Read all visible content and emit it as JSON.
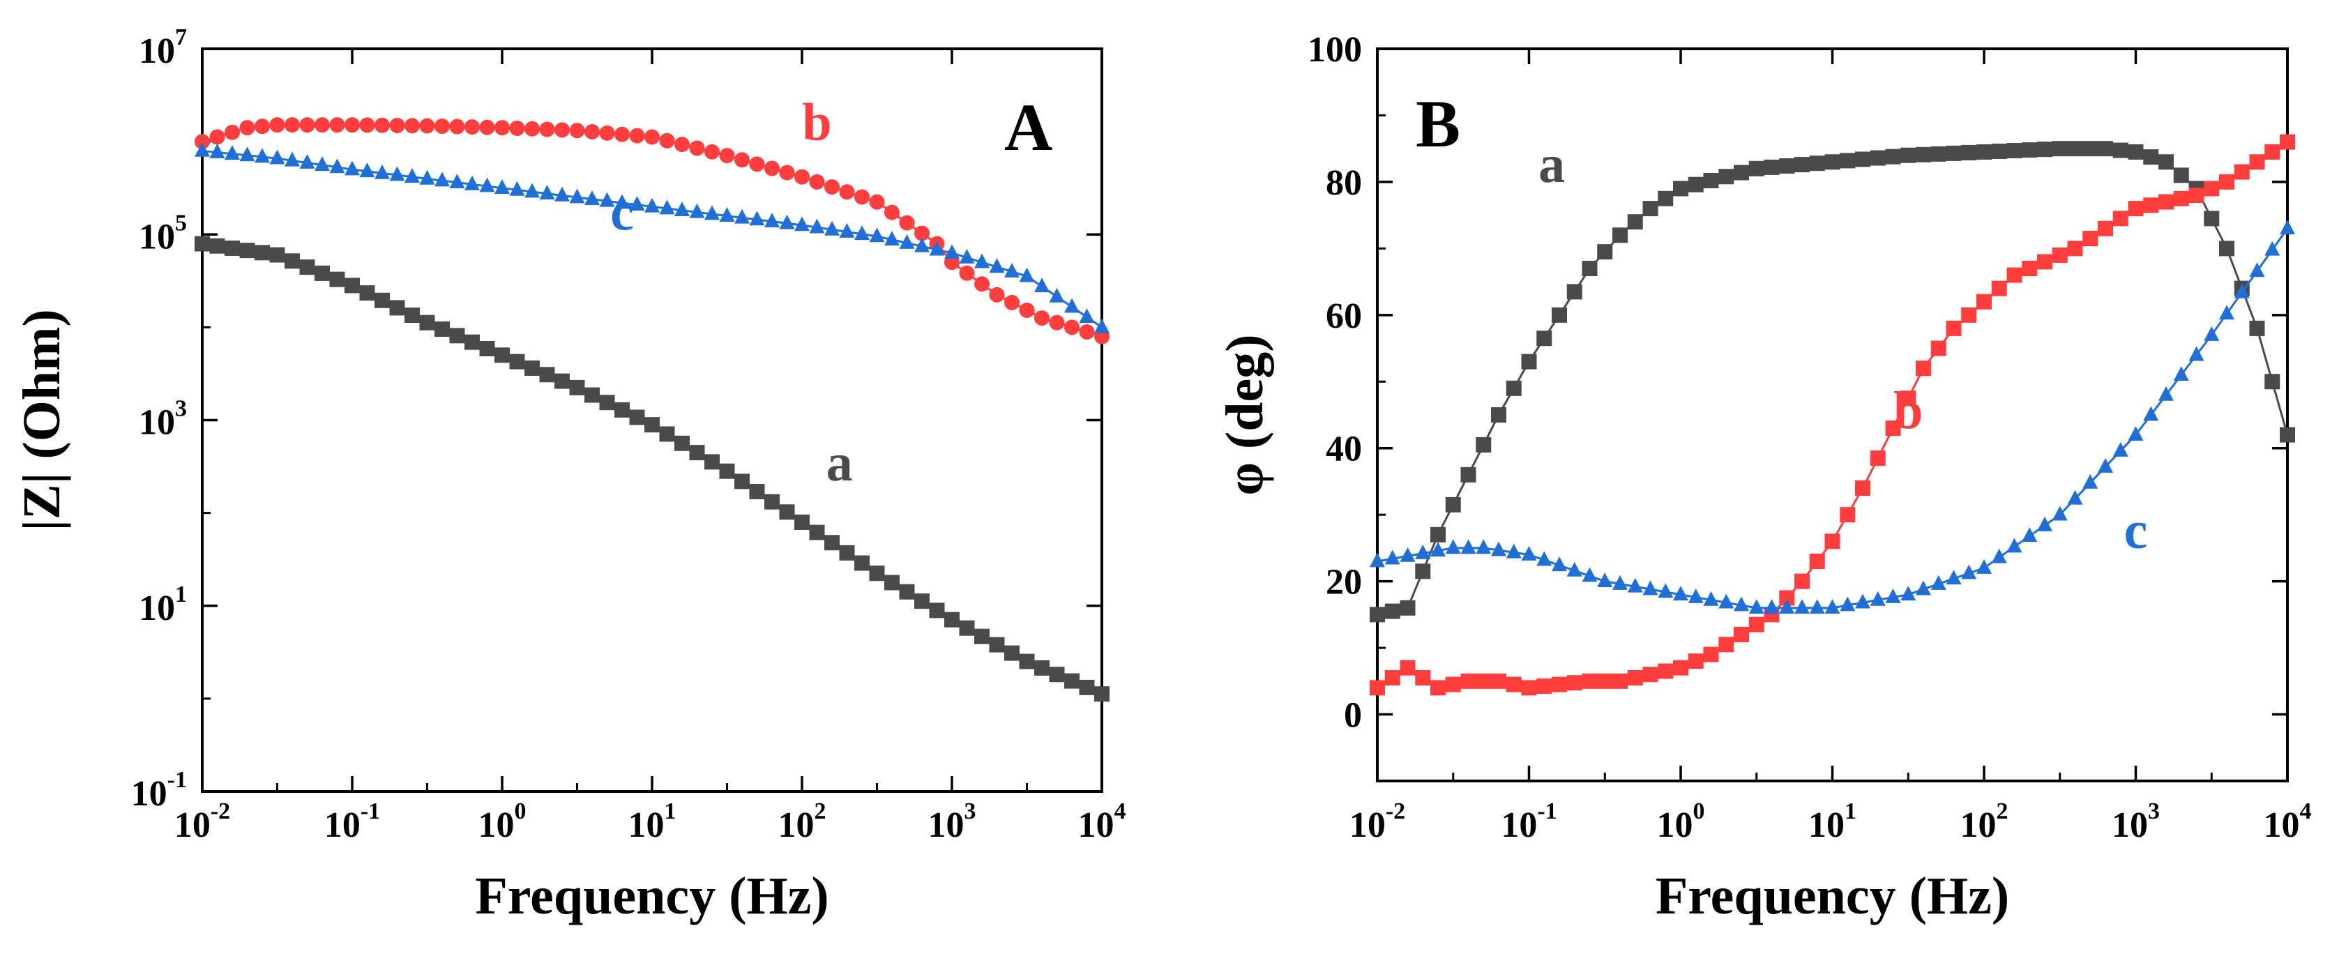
{
  "colors": {
    "a": "#4a4a4a",
    "b": "#ff3d3d",
    "c": "#1f6fd6"
  },
  "chart_data": [
    {
      "id": "A",
      "type": "line",
      "panel_label": "A",
      "xlabel": "Frequency (Hz)",
      "ylabel": "|Z| (Ohm)",
      "xscale": "log",
      "yscale": "log",
      "xlim": [
        0.01,
        10000
      ],
      "ylim": [
        0.1,
        10000000
      ],
      "x_ticks": [
        {
          "base": "10",
          "exp": "-2"
        },
        {
          "base": "10",
          "exp": "-1"
        },
        {
          "base": "10",
          "exp": "0"
        },
        {
          "base": "10",
          "exp": "1"
        },
        {
          "base": "10",
          "exp": "2"
        },
        {
          "base": "10",
          "exp": "3"
        },
        {
          "base": "10",
          "exp": "4"
        }
      ],
      "y_ticks": [
        {
          "base": "10",
          "exp": "-1"
        },
        {
          "base": "10",
          "exp": "1"
        },
        {
          "base": "10",
          "exp": "3"
        },
        {
          "base": "10",
          "exp": "5"
        },
        {
          "base": "10",
          "exp": "7"
        }
      ],
      "series": [
        {
          "name": "a",
          "label": "a",
          "marker": "square",
          "color_key": "a",
          "log10_x": [
            -2,
            -1.5,
            -1,
            -0.5,
            0,
            0.5,
            1,
            1.5,
            2,
            2.5,
            3,
            3.5,
            4
          ],
          "log10_y": [
            4.9,
            4.78,
            4.45,
            4.05,
            3.7,
            3.35,
            2.95,
            2.45,
            1.9,
            1.35,
            0.85,
            0.4,
            0.05
          ]
        },
        {
          "name": "b",
          "label": "b",
          "marker": "circle",
          "color_key": "b",
          "log10_x": [
            -2,
            -1.7,
            -1.5,
            -1,
            -0.5,
            0,
            0.5,
            1,
            1.5,
            2,
            2.5,
            2.9,
            3,
            3.3,
            3.6,
            4
          ],
          "log10_y": [
            6.0,
            6.15,
            6.18,
            6.18,
            6.17,
            6.15,
            6.12,
            6.05,
            5.85,
            5.62,
            5.35,
            4.9,
            4.7,
            4.35,
            4.1,
            3.9
          ]
        },
        {
          "name": "c",
          "label": "c",
          "marker": "triangle",
          "color_key": "c",
          "log10_x": [
            -2,
            -1.5,
            -1,
            -0.5,
            0,
            0.5,
            1,
            1.5,
            2,
            2.5,
            3,
            3.5,
            4
          ],
          "log10_y": [
            5.9,
            5.82,
            5.7,
            5.6,
            5.5,
            5.4,
            5.3,
            5.2,
            5.1,
            4.98,
            4.8,
            4.55,
            4.0
          ]
        }
      ],
      "curve_labels": [
        {
          "series": "b",
          "text": "b",
          "log10_x": 2.1,
          "log10_y": 6.02
        },
        {
          "series": "c",
          "text": "c",
          "log10_x": 0.8,
          "log10_y": 5.05
        },
        {
          "series": "a",
          "text": "a",
          "log10_x": 2.25,
          "log10_y": 2.35
        }
      ]
    },
    {
      "id": "B",
      "type": "line",
      "panel_label": "B",
      "xlabel": "Frequency (Hz)",
      "ylabel": "φ (deg)",
      "xscale": "log",
      "yscale": "linear",
      "xlim": [
        0.01,
        10000
      ],
      "ylim": [
        -10,
        100
      ],
      "x_ticks": [
        {
          "base": "10",
          "exp": "-2"
        },
        {
          "base": "10",
          "exp": "-1"
        },
        {
          "base": "10",
          "exp": "0"
        },
        {
          "base": "10",
          "exp": "1"
        },
        {
          "base": "10",
          "exp": "2"
        },
        {
          "base": "10",
          "exp": "3"
        },
        {
          "base": "10",
          "exp": "4"
        }
      ],
      "y_ticks": [
        "0",
        "20",
        "40",
        "60",
        "80",
        "100"
      ],
      "y_tick_values": [
        0,
        20,
        40,
        60,
        80,
        100
      ],
      "series": [
        {
          "name": "a",
          "label": "a",
          "marker": "square",
          "color_key": "a",
          "log10_x": [
            -2,
            -1.8,
            -1.6,
            -1.4,
            -1.2,
            -1,
            -0.8,
            -0.6,
            -0.4,
            -0.2,
            0,
            0.5,
            1,
            1.5,
            2,
            2.5,
            2.8,
            3,
            3.2,
            3.4,
            3.6,
            3.8,
            4
          ],
          "y": [
            15,
            16,
            27,
            36,
            45,
            53,
            60,
            67,
            72,
            76,
            79,
            82,
            83,
            84,
            84.5,
            85,
            85,
            84.5,
            83,
            79,
            70,
            58,
            42
          ]
        },
        {
          "name": "b",
          "label": "b",
          "marker": "square",
          "color_key": "b",
          "log10_x": [
            -2,
            -1.8,
            -1.6,
            -1.4,
            -1.2,
            -1,
            -0.8,
            -0.6,
            -0.4,
            -0.2,
            0,
            0.2,
            0.4,
            0.6,
            0.8,
            1,
            1.2,
            1.4,
            1.6,
            1.8,
            2,
            2.2,
            2.4,
            2.6,
            2.8,
            3,
            3.2,
            3.4,
            3.6,
            3.8,
            4
          ],
          "y": [
            4,
            7,
            4,
            5,
            5,
            4,
            4.5,
            5,
            5,
            6,
            7,
            9,
            12,
            15,
            20,
            26,
            34,
            43,
            52,
            58,
            62,
            66,
            68,
            70,
            73,
            76,
            77,
            78,
            80,
            83,
            86
          ]
        },
        {
          "name": "c",
          "label": "c",
          "marker": "triangle",
          "color_key": "c",
          "log10_x": [
            -2,
            -1.5,
            -1.3,
            -1,
            -0.5,
            0,
            0.5,
            0.7,
            1,
            1.5,
            2,
            2.5,
            3,
            3.5,
            4
          ],
          "y": [
            23,
            25,
            25,
            24,
            20,
            18,
            16,
            16,
            16,
            18,
            22,
            30,
            42,
            57,
            73
          ]
        }
      ],
      "curve_labels": [
        {
          "series": "a",
          "text": "a",
          "log10_x": -0.85,
          "log10_y": 80
        },
        {
          "series": "b",
          "text": "b",
          "log10_x": 1.5,
          "log10_y": 43
        },
        {
          "series": "c",
          "text": "c",
          "log10_x": 3.0,
          "log10_y": 25
        }
      ]
    }
  ]
}
